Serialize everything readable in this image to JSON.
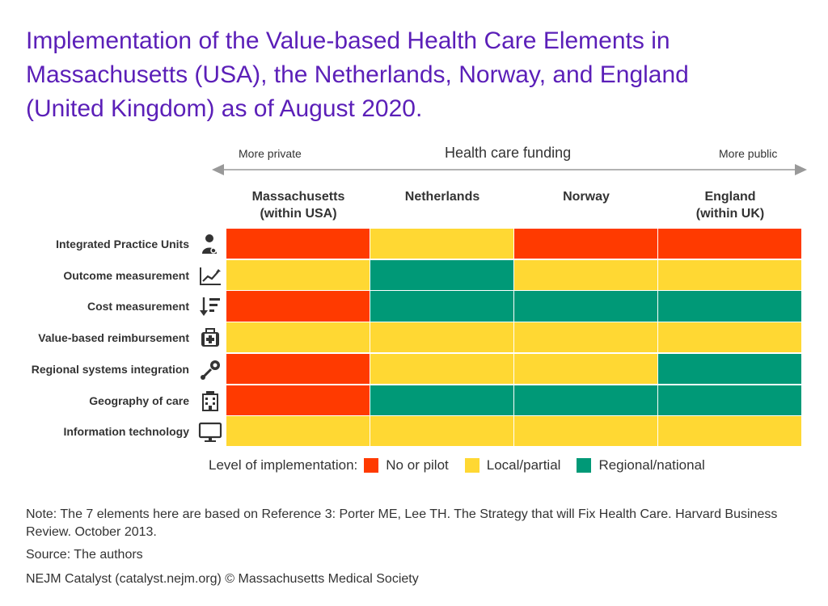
{
  "title": "Implementation of the Value-based Health Care Elements in\nMassachusetts (USA), the Netherlands, Norway, and England\n(United Kingdom) as of August 2020.",
  "funding_axis": {
    "label": "Health care funding",
    "left_label": "More private",
    "right_label": "More public"
  },
  "colors": {
    "title": "#5b1fb8",
    "No or pilot": "#ff3a00",
    "Local/partial": "#ffd833",
    "Regional/national": "#009977"
  },
  "chart_data": {
    "type": "heatmap",
    "columns": [
      "Massachusetts\n(within USA)",
      "Netherlands",
      "Norway",
      "England\n(within UK)"
    ],
    "rows": [
      {
        "label": "Integrated Practice Units",
        "icon": "doctor-icon",
        "values": [
          "No or pilot",
          "Local/partial",
          "No or pilot",
          "No or pilot"
        ]
      },
      {
        "label": "Outcome measurement",
        "icon": "trend-chart-icon",
        "values": [
          "Local/partial",
          "Regional/national",
          "Local/partial",
          "Local/partial"
        ]
      },
      {
        "label": "Cost measurement",
        "icon": "sort-descending-icon",
        "values": [
          "No or pilot",
          "Regional/national",
          "Regional/national",
          "Regional/national"
        ]
      },
      {
        "label": "Value-based reimbursement",
        "icon": "medical-kit-icon",
        "values": [
          "Local/partial",
          "Local/partial",
          "Local/partial",
          "Local/partial"
        ]
      },
      {
        "label": "Regional systems integration",
        "icon": "network-connection-icon",
        "values": [
          "No or pilot",
          "Local/partial",
          "Local/partial",
          "Regional/national"
        ]
      },
      {
        "label": "Geography of care",
        "icon": "hospital-building-icon",
        "values": [
          "No or pilot",
          "Regional/national",
          "Regional/national",
          "Regional/national"
        ]
      },
      {
        "label": "Information technology",
        "icon": "computer-monitor-icon",
        "values": [
          "Local/partial",
          "Local/partial",
          "Local/partial",
          "Local/partial"
        ]
      }
    ],
    "legend": {
      "title": "Level of implementation:",
      "items": [
        "No or pilot",
        "Local/partial",
        "Regional/national"
      ],
      "placement": "bottom"
    }
  },
  "note": "Note: The 7 elements here are based on Reference 3: Porter ME, Lee TH. The Strategy that will Fix Health Care. Harvard Business Review. October 2013.",
  "source": "Source: The authors",
  "credit": "NEJM Catalyst (catalyst.nejm.org) © Massachusetts Medical Society"
}
